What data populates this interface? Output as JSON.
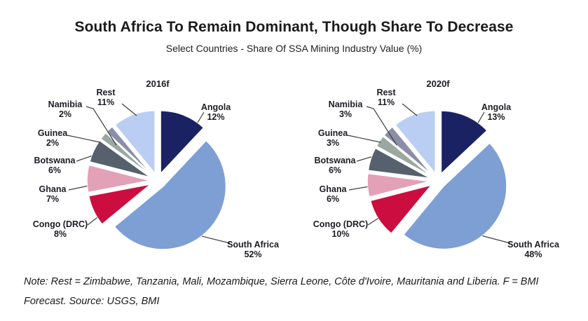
{
  "header": {
    "title": "South Africa To Remain Dominant, Though Share To Decrease",
    "subtitle": "Select Countries - Share Of SSA Mining Industry Value (%)"
  },
  "chart_data": [
    {
      "type": "pie",
      "title": "2016f",
      "categories": [
        "Angola",
        "South Africa",
        "Congo (DRC)",
        "Ghana",
        "Botswana",
        "Guinea",
        "Namibia",
        "Rest"
      ],
      "values": [
        12,
        52,
        8,
        7,
        6,
        2,
        2,
        11
      ],
      "unit": "%",
      "start_angle_deg": 0,
      "direction": "clockwise",
      "exploded": true,
      "legend_position": "outside-labels-with-leader-lines",
      "colors": [
        "#1b2264",
        "#7e9fd3",
        "#cb0e3f",
        "#e2a1b7",
        "#57616e",
        "#9ba89f",
        "#8b8ea6",
        "#bacdf2"
      ]
    },
    {
      "type": "pie",
      "title": "2020f",
      "categories": [
        "Angola",
        "South Africa",
        "Congo (DRC)",
        "Ghana",
        "Botswana",
        "Guinea",
        "Namibia",
        "Rest"
      ],
      "values": [
        13,
        48,
        10,
        6,
        6,
        3,
        3,
        11
      ],
      "unit": "%",
      "start_angle_deg": 0,
      "direction": "clockwise",
      "exploded": true,
      "legend_position": "outside-labels-with-leader-lines",
      "colors": [
        "#1b2264",
        "#7e9fd3",
        "#cb0e3f",
        "#e2a1b7",
        "#57616e",
        "#9ba89f",
        "#8b8ea6",
        "#bacdf2"
      ]
    }
  ],
  "note": "Note: Rest = Zimbabwe, Tanzania, Mali, Mozambique, Sierra Leone, Côte d'Ivoire, Mauritania and Liberia. F = BMI Forecast. Source: USGS, BMI",
  "styles": {
    "label_text_color": "#1c1c24",
    "leader_line_color": "#3f3f3f",
    "background_color": "#ffffff"
  }
}
